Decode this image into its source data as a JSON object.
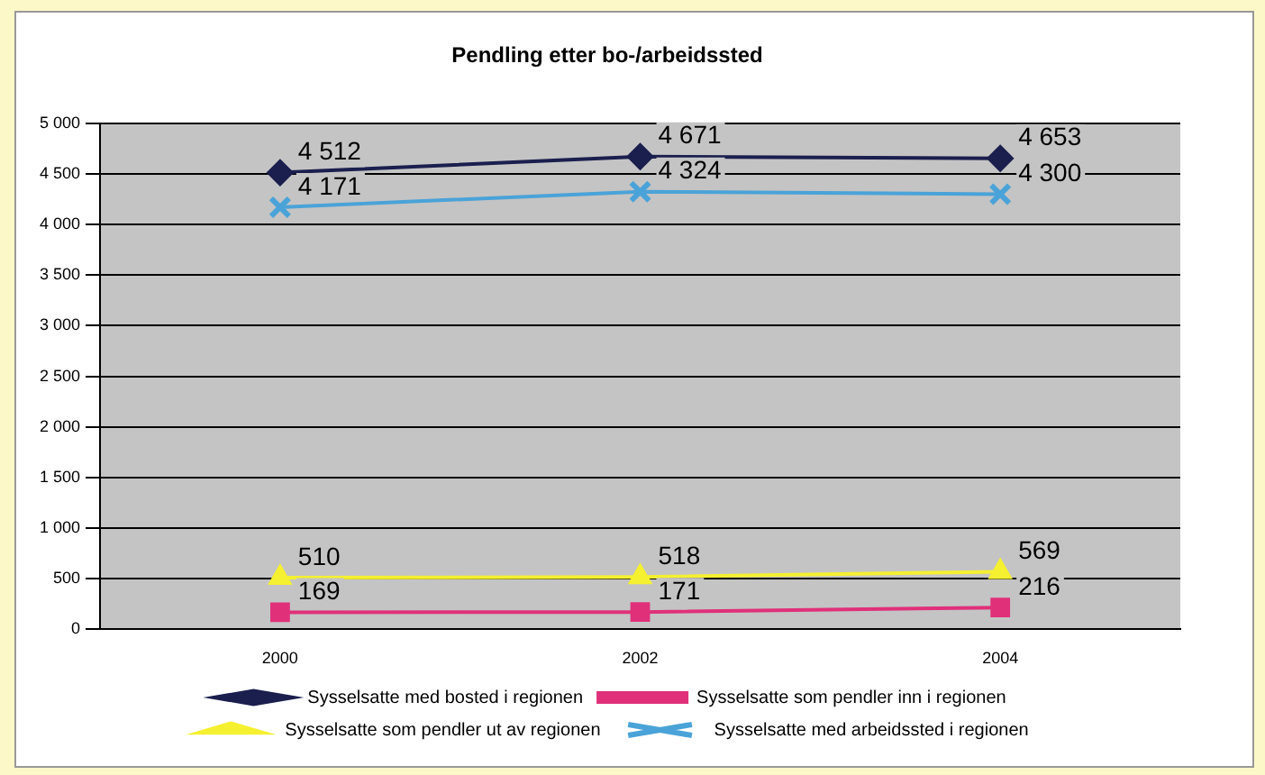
{
  "chart_data": {
    "type": "line",
    "title": "Pendling etter bo-/arbeidssted",
    "categories": [
      "2000",
      "2002",
      "2004"
    ],
    "series": [
      {
        "name": "Sysselsatte med bosted i regionen",
        "color": "#1a1f4e",
        "marker": "diamond",
        "values": [
          4512,
          4671,
          4653
        ],
        "value_labels": [
          "4 512",
          "4 671",
          "4 653"
        ]
      },
      {
        "name": "Sysselsatte som pendler inn i regionen",
        "color": "#e0307a",
        "marker": "square",
        "values": [
          169,
          171,
          216
        ],
        "value_labels": [
          "169",
          "171",
          "216"
        ]
      },
      {
        "name": "Sysselsatte som pendler ut av regionen",
        "color": "#f5f030",
        "marker": "triangle",
        "values": [
          510,
          518,
          569
        ],
        "value_labels": [
          "510",
          "518",
          "569"
        ]
      },
      {
        "name": "Sysselsatte med arbeidssted i regionen",
        "color": "#4aa3d8",
        "marker": "cross",
        "values": [
          4171,
          4324,
          4300
        ],
        "value_labels": [
          "4 171",
          "4 324",
          "4 300"
        ]
      }
    ],
    "ylim": [
      0,
      5000
    ],
    "yticks": [
      {
        "value": 0,
        "label": "0"
      },
      {
        "value": 500,
        "label": "500"
      },
      {
        "value": 1000,
        "label": "1 000"
      },
      {
        "value": 1500,
        "label": "1 500"
      },
      {
        "value": 2000,
        "label": "2 000"
      },
      {
        "value": 2500,
        "label": "2 500"
      },
      {
        "value": 3000,
        "label": "3 000"
      },
      {
        "value": 3500,
        "label": "3 500"
      },
      {
        "value": 4000,
        "label": "4 000"
      },
      {
        "value": 4500,
        "label": "4 500"
      },
      {
        "value": 5000,
        "label": "5 000"
      }
    ],
    "grid": "y",
    "legend": "bottom"
  }
}
